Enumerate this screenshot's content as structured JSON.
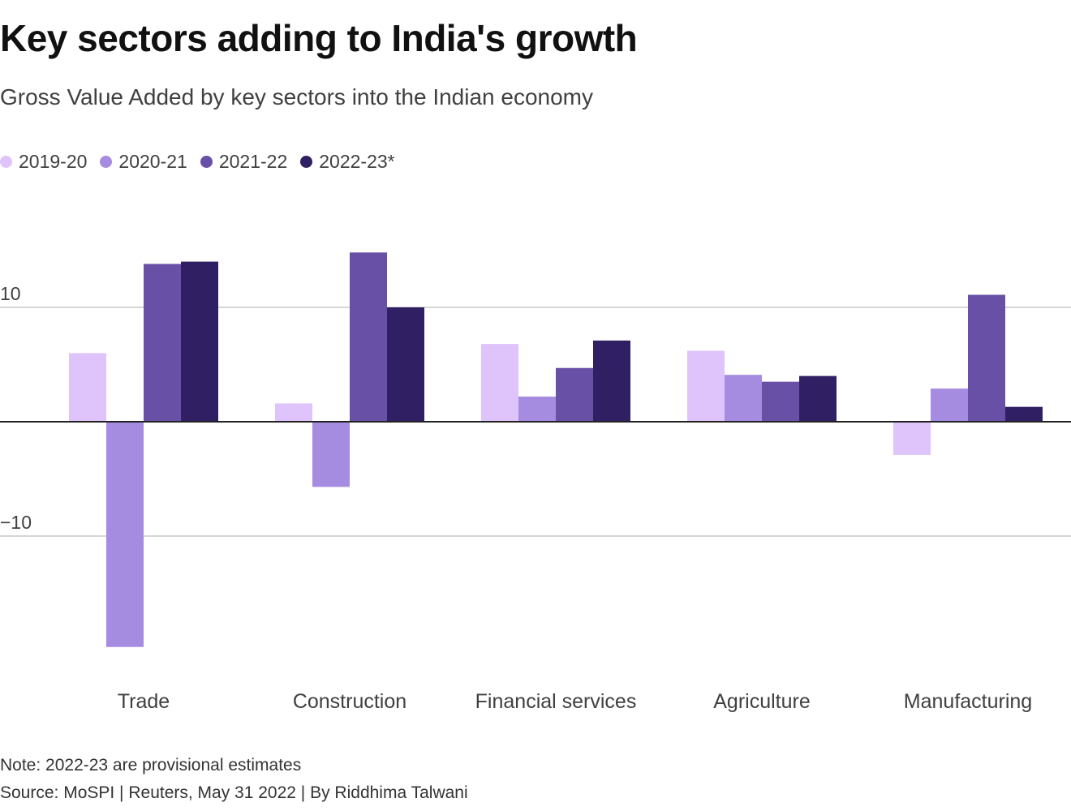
{
  "title": "Key sectors adding to India's growth",
  "subtitle": "Gross Value Added by key sectors into the Indian economy",
  "note": "Note: 2022-23 are provisional estimates",
  "source": "Source: MoSPI | Reuters, May 31 2022 | By Riddhima Talwani",
  "chart_data": {
    "type": "bar",
    "title": "Key sectors adding to India's growth",
    "subtitle": "Gross Value Added by key sectors into the Indian economy",
    "xlabel": "",
    "ylabel": "",
    "categories": [
      "Trade",
      "Construction",
      "Financial services",
      "Agriculture",
      "Manufacturing"
    ],
    "series": [
      {
        "name": "2019-20",
        "color": "#dfc3fb",
        "values": [
          6.0,
          1.6,
          6.8,
          6.2,
          -2.9
        ]
      },
      {
        "name": "2020-21",
        "color": "#a68ce1",
        "values": [
          -19.7,
          -5.7,
          2.2,
          4.1,
          2.9
        ]
      },
      {
        "name": "2021-22",
        "color": "#6750a6",
        "values": [
          13.8,
          14.8,
          4.7,
          3.5,
          11.1
        ]
      },
      {
        "name": "2022-23*",
        "color": "#311f63",
        "values": [
          14.0,
          10.0,
          7.1,
          4.0,
          1.3
        ]
      }
    ],
    "ylim": [
      -22,
      17
    ],
    "yticks": [
      10,
      -10
    ],
    "ytick_labels": [
      "10",
      "−10"
    ],
    "grid": true,
    "legend": "top-left"
  }
}
